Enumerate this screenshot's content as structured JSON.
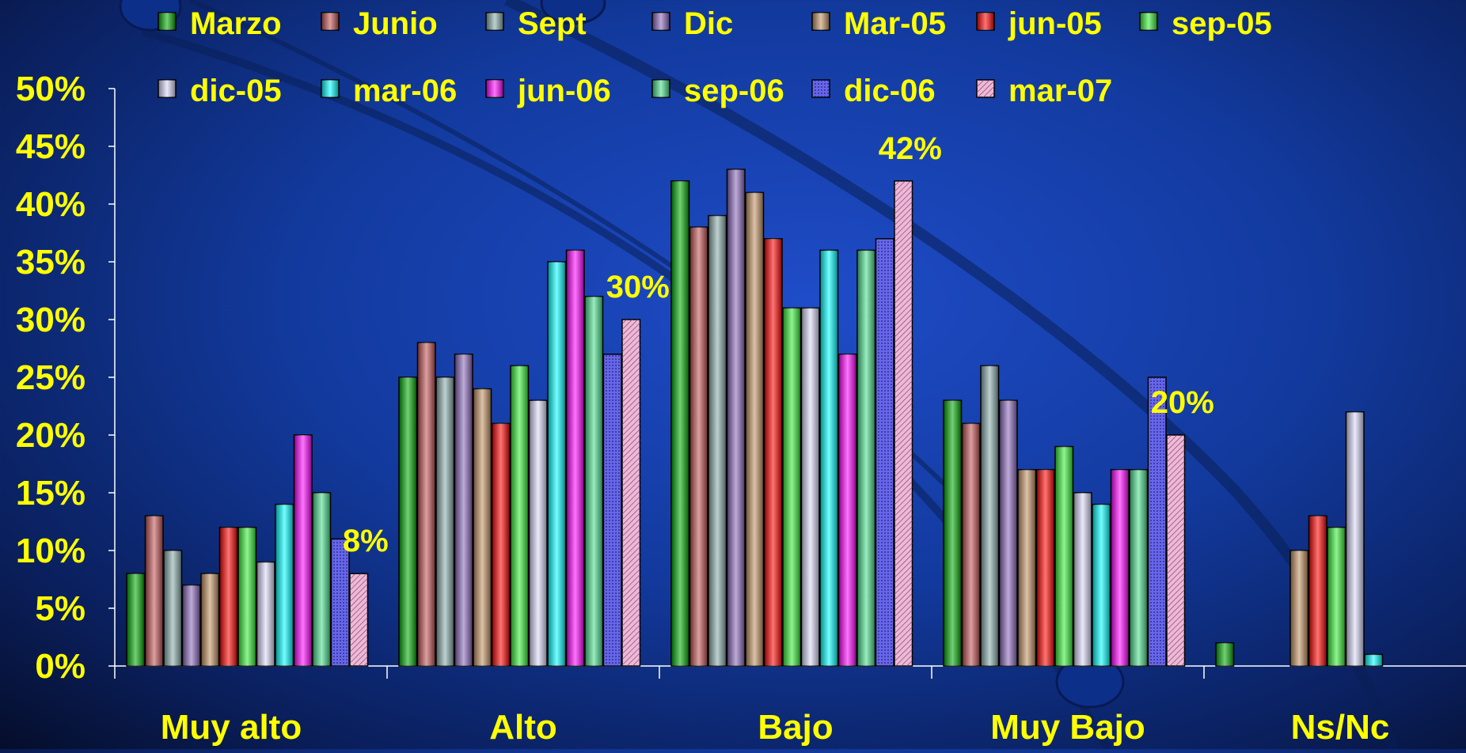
{
  "chart_data": {
    "type": "bar",
    "title": "",
    "xlabel": "",
    "ylabel": "",
    "ylim": [
      0,
      50
    ],
    "y_ticks": [
      "0%",
      "5%",
      "10%",
      "15%",
      "20%",
      "25%",
      "30%",
      "35%",
      "40%",
      "45%",
      "50%"
    ],
    "categories": [
      "Muy alto",
      "Alto",
      "Bajo",
      "Muy Bajo",
      "Ns/Nc"
    ],
    "legend_placement": "top",
    "grid": false,
    "series": [
      {
        "name": "Marzo",
        "color": "#00a800",
        "pattern": "none",
        "values": [
          8,
          25,
          42,
          23,
          2
        ]
      },
      {
        "name": "Junio",
        "color": "#c05050",
        "pattern": "none",
        "values": [
          13,
          28,
          38,
          21,
          null
        ]
      },
      {
        "name": "Sept",
        "color": "#88aaaa",
        "pattern": "none",
        "values": [
          10,
          25,
          39,
          26,
          null
        ]
      },
      {
        "name": "Dic",
        "color": "#8866bb",
        "pattern": "none",
        "values": [
          7,
          27,
          43,
          23,
          null
        ]
      },
      {
        "name": "Mar-05",
        "color": "#c09060",
        "pattern": "none",
        "values": [
          8,
          24,
          41,
          17,
          10
        ]
      },
      {
        "name": "jun-05",
        "color": "#ff0000",
        "pattern": "none",
        "values": [
          12,
          21,
          37,
          17,
          13
        ]
      },
      {
        "name": "sep-05",
        "color": "#33ee33",
        "pattern": "none",
        "values": [
          12,
          26,
          31,
          19,
          12
        ]
      },
      {
        "name": "dic-05",
        "color": "#d8d8f8",
        "pattern": "none",
        "values": [
          9,
          23,
          31,
          15,
          22
        ]
      },
      {
        "name": "mar-06",
        "color": "#00ffff",
        "pattern": "none",
        "values": [
          14,
          35,
          36,
          14,
          1
        ]
      },
      {
        "name": "jun-06",
        "color": "#ff00ff",
        "pattern": "none",
        "values": [
          20,
          36,
          27,
          17,
          null
        ]
      },
      {
        "name": "sep-06",
        "color": "#44dd88",
        "pattern": "none",
        "values": [
          15,
          32,
          36,
          17,
          null
        ]
      },
      {
        "name": "dic-06",
        "color": "#6666ee",
        "pattern": "dots",
        "values": [
          11,
          27,
          37,
          25,
          null
        ]
      },
      {
        "name": "mar-07",
        "color": "#f0b8d8",
        "pattern": "hatch",
        "values": [
          8,
          30,
          42,
          20,
          null
        ]
      }
    ],
    "annotations": [
      {
        "text": "8%",
        "category": "Muy alto",
        "value": 8
      },
      {
        "text": "30%",
        "category": "Alto",
        "value": 30
      },
      {
        "text": "42%",
        "category": "Bajo",
        "value": 42
      },
      {
        "text": "20%",
        "category": "Muy Bajo",
        "value": 20
      }
    ]
  }
}
